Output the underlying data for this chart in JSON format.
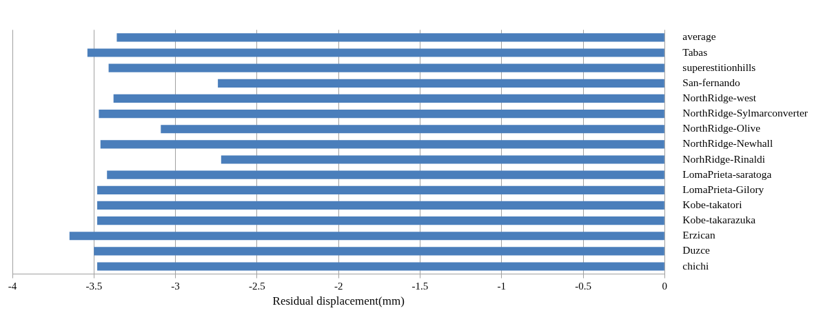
{
  "chart_data": {
    "type": "bar",
    "orientation": "horizontal",
    "xlabel": "Residual displacement(mm)",
    "categories": [
      "average",
      "Tabas",
      "superestitionhills",
      "San-fernando",
      "NorthRidge-west",
      "NorthRidge-Sylmarconverter",
      "NorthRidge-Olive",
      "NorthRidge-Newhall",
      "NorhRidge-Rinaldi",
      "LomaPrieta-saratoga",
      "LomaPrieta-Gilory",
      "Kobe-takatori",
      "Kobe-takarazuka",
      "Erzican",
      "Duzce",
      "chichi"
    ],
    "values": [
      -3.36,
      -3.54,
      -3.41,
      -2.74,
      -3.38,
      -3.47,
      -3.09,
      -3.46,
      -2.72,
      -3.42,
      -3.48,
      -3.48,
      -3.48,
      -3.65,
      -3.5,
      -3.48
    ],
    "color": "#4a7ebb",
    "xlim": [
      -4,
      0
    ],
    "xticks": [
      -4,
      -3.5,
      -3,
      -2.5,
      -2,
      -1.5,
      -1,
      -0.5,
      0
    ],
    "grid": "x",
    "legend": false
  }
}
